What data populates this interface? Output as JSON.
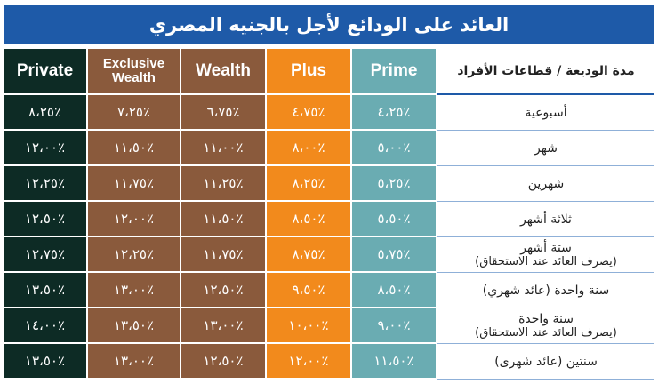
{
  "title": "العائد على الودائع لأجل بالجنيه المصري",
  "headers": {
    "private": "Private",
    "exclusive_wealth": "Exclusive Wealth",
    "wealth": "Wealth",
    "plus": "Plus",
    "prime": "Prime",
    "period": "مدة الوديعة / قطاعات الأفراد"
  },
  "colors": {
    "title_bg": "#1e5aa8",
    "private": "#0d2b25",
    "wealth": "#8a5a3c",
    "plus": "#f28a1c",
    "prime": "#6aacb2"
  },
  "rows": [
    {
      "period": "أسبوعية",
      "sub": "",
      "private": "٨،٢٥٪",
      "exclusive_wealth": "٧،٢٥٪",
      "wealth": "٦،٧٥٪",
      "plus": "٤،٧٥٪",
      "prime": "٤،٢٥٪"
    },
    {
      "period": "شهر",
      "sub": "",
      "private": "١٢،٠٠٪",
      "exclusive_wealth": "١١،٥٠٪",
      "wealth": "١١،٠٠٪",
      "plus": "٨،٠٠٪",
      "prime": "٥،٠٠٪"
    },
    {
      "period": "شهرين",
      "sub": "",
      "private": "١٢،٢٥٪",
      "exclusive_wealth": "١١،٧٥٪",
      "wealth": "١١،٢٥٪",
      "plus": "٨،٢٥٪",
      "prime": "٥،٢٥٪"
    },
    {
      "period": "ثلاثة أشهر",
      "sub": "",
      "private": "١٢،٥٠٪",
      "exclusive_wealth": "١٢،٠٠٪",
      "wealth": "١١،٥٠٪",
      "plus": "٨،٥٠٪",
      "prime": "٥،٥٠٪"
    },
    {
      "period": "ستة أشهر",
      "sub": "(يصرف العائد عند الاستحقاق)",
      "private": "١٢،٧٥٪",
      "exclusive_wealth": "١٢،٢٥٪",
      "wealth": "١١،٧٥٪",
      "plus": "٨،٧٥٪",
      "prime": "٥،٧٥٪"
    },
    {
      "period": "سنة واحدة (عائد شهري)",
      "sub": "",
      "private": "١٣،٥٠٪",
      "exclusive_wealth": "١٣،٠٠٪",
      "wealth": "١٢،٥٠٪",
      "plus": "٩،٥٠٪",
      "prime": "٨،٥٠٪"
    },
    {
      "period": "سنة واحدة",
      "sub": "(يصرف العائد عند الاستحقاق)",
      "private": "١٤،٠٠٪",
      "exclusive_wealth": "١٣،٥٠٪",
      "wealth": "١٣،٠٠٪",
      "plus": "١٠،٠٠٪",
      "prime": "٩،٠٠٪"
    },
    {
      "period": "سنتين (عائد شهرى)",
      "sub": "",
      "private": "١٣،٥٠٪",
      "exclusive_wealth": "١٣،٠٠٪",
      "wealth": "١٢،٥٠٪",
      "plus": "١٢،٠٠٪",
      "prime": "١١،٥٠٪"
    }
  ]
}
